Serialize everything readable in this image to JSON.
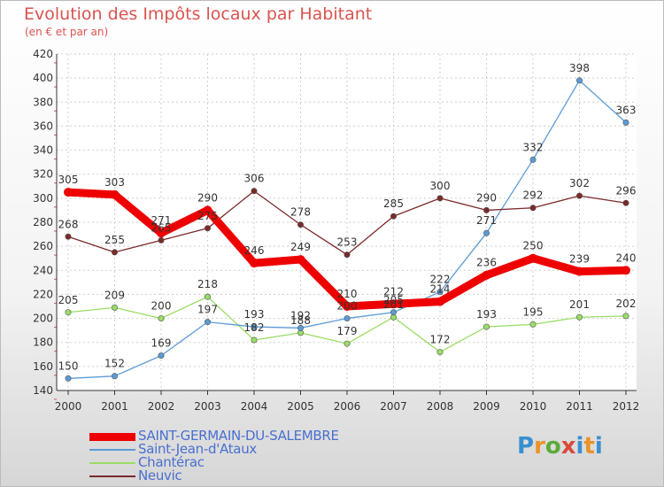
{
  "header": {
    "title": "Evolution des Impôts locaux par Habitant",
    "subtitle": "(en € et par an)"
  },
  "logo": {
    "text": "Proxiti"
  },
  "chart_data": {
    "type": "line",
    "title": "Evolution des Impôts locaux par Habitant",
    "subtitle": "(en € et par an)",
    "xlabel": "",
    "ylabel": "",
    "ylim": [
      140,
      420
    ],
    "yticks": [
      140,
      160,
      180,
      200,
      220,
      240,
      260,
      280,
      300,
      320,
      340,
      360,
      380,
      400,
      420
    ],
    "categories": [
      "2000",
      "2001",
      "2002",
      "2003",
      "2004",
      "2005",
      "2006",
      "2007",
      "2008",
      "2009",
      "2010",
      "2011",
      "2012"
    ],
    "grid": true,
    "legend_position": "bottom-left",
    "series": [
      {
        "name": "SAINT-GERMAIN-DU-SALEMBRE",
        "color": "#ee0000",
        "labels": [
          "305",
          "303",
          "271",
          "290",
          "246",
          "249",
          "210",
          "212",
          "214",
          "236",
          "250",
          "239",
          "240"
        ],
        "values": [
          305,
          303,
          271,
          290,
          246,
          249,
          210,
          212,
          214,
          236,
          250,
          239,
          240
        ]
      },
      {
        "name": "Saint-Jean-d'Ataux",
        "color": "#5b9bd5",
        "labels": [
          "150",
          "152",
          "169",
          "197",
          "193",
          "192",
          "200",
          "205",
          "222",
          "271",
          "332",
          "398",
          "363"
        ],
        "values": [
          150,
          152,
          169,
          197,
          193,
          192,
          200,
          205,
          222,
          271,
          332,
          398,
          363
        ]
      },
      {
        "name": "Chantérac",
        "color": "#99dd66",
        "labels": [
          "205",
          "209",
          "200",
          "218",
          "182",
          "188",
          "179",
          "201",
          "172",
          "193",
          "195",
          "201",
          "202"
        ],
        "values": [
          205,
          209,
          200,
          218,
          182,
          188,
          179,
          201,
          172,
          193,
          195,
          201,
          202
        ]
      },
      {
        "name": "Neuvic",
        "color": "#7b2a2a",
        "labels": [
          "268",
          "255",
          "265",
          "275",
          "306",
          "278",
          "253",
          "285",
          "300",
          "290",
          "292",
          "302",
          "296"
        ],
        "values": [
          268,
          255,
          265,
          275,
          306,
          278,
          253,
          285,
          300,
          290,
          292,
          302,
          296
        ]
      }
    ]
  }
}
